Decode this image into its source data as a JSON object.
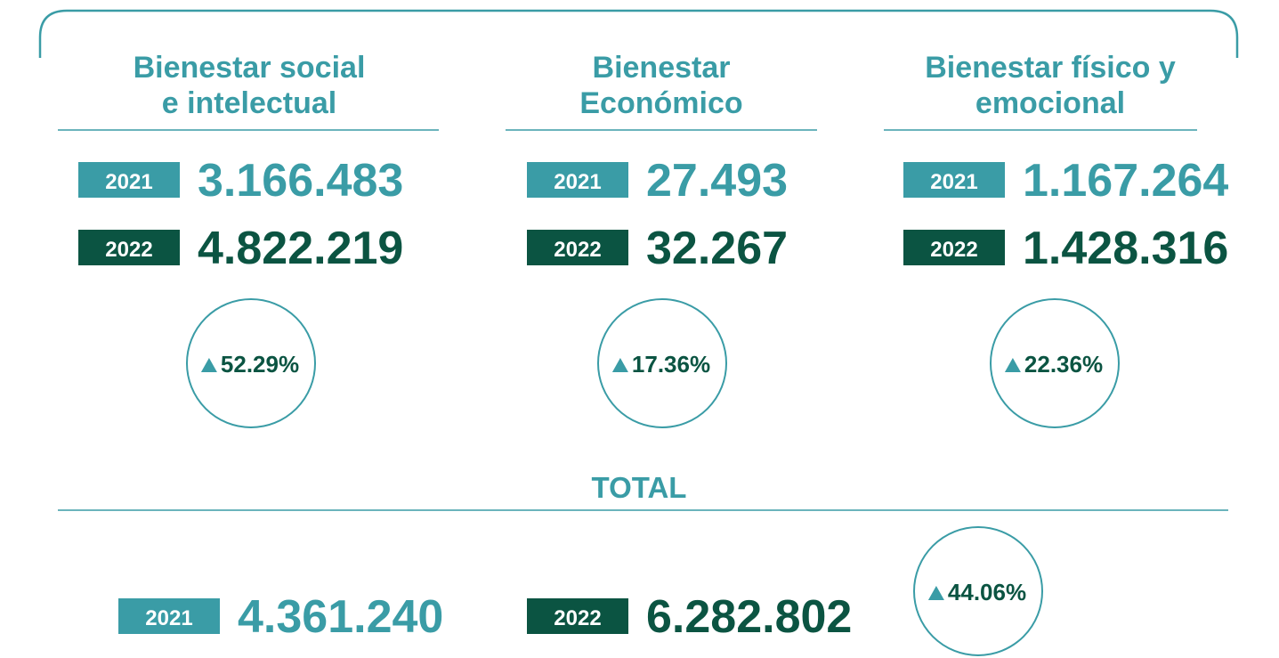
{
  "sections": [
    {
      "title": [
        "Bienestar social",
        "e intelectual"
      ],
      "rows": [
        {
          "year": "2021",
          "value": "3.166.483"
        },
        {
          "year": "2022",
          "value": "4.822.219"
        }
      ],
      "change": "52.29%"
    },
    {
      "title": [
        "Bienestar",
        "Económico"
      ],
      "rows": [
        {
          "year": "2021",
          "value": "27.493"
        },
        {
          "year": "2022",
          "value": "32.267"
        }
      ],
      "change": "17.36%"
    },
    {
      "title": [
        "Bienestar físico y",
        "emocional"
      ],
      "rows": [
        {
          "year": "2021",
          "value": "1.167.264"
        },
        {
          "year": "2022",
          "value": "1.428.316"
        }
      ],
      "change": "22.36%"
    }
  ],
  "total": {
    "title": "TOTAL",
    "rows": [
      {
        "year": "2021",
        "value": "4.361.240"
      },
      {
        "year": "2022",
        "value": "6.282.802"
      }
    ],
    "change": "44.06%"
  }
}
